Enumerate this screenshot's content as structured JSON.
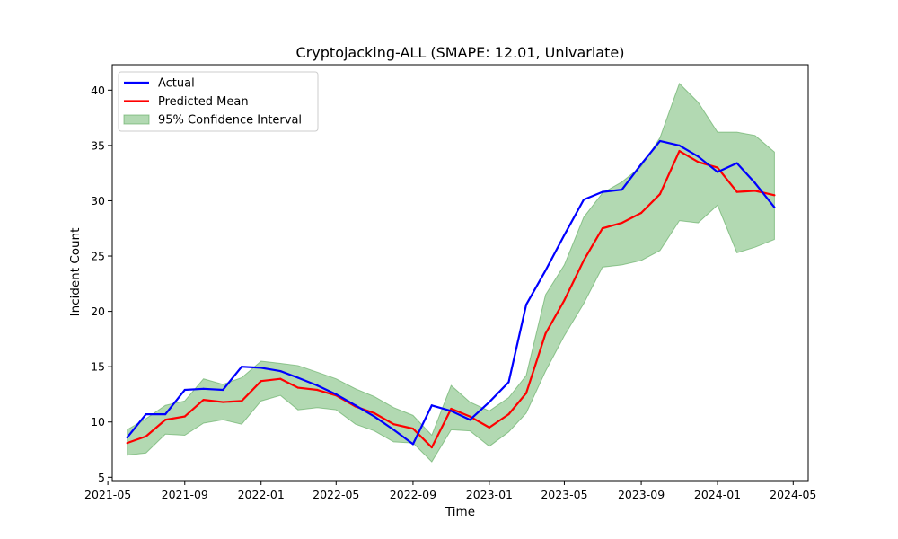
{
  "chart_data": {
    "type": "line",
    "title": "Cryptojacking-ALL (SMAPE: 12.01, Univariate)",
    "xlabel": "Time",
    "ylabel": "Incident Count",
    "xlim": [
      "2021-05-08",
      "2024-05-25"
    ],
    "ylim": [
      4.7,
      42.3
    ],
    "x_ticks": [
      "2021-05",
      "2021-09",
      "2022-01",
      "2022-05",
      "2022-09",
      "2023-01",
      "2023-05",
      "2023-09",
      "2024-01",
      "2024-05"
    ],
    "y_ticks": [
      5,
      10,
      15,
      20,
      25,
      30,
      35,
      40
    ],
    "legend_position": "upper-left",
    "x": [
      "2021-06-01",
      "2021-07-01",
      "2021-08-01",
      "2021-09-01",
      "2021-10-01",
      "2021-11-01",
      "2021-12-01",
      "2022-01-01",
      "2022-02-01",
      "2022-03-01",
      "2022-04-01",
      "2022-05-01",
      "2022-06-01",
      "2022-07-01",
      "2022-08-01",
      "2022-09-01",
      "2022-10-01",
      "2022-11-01",
      "2022-12-01",
      "2023-01-01",
      "2023-02-01",
      "2023-03-01",
      "2023-04-01",
      "2023-05-01",
      "2023-06-01",
      "2023-07-01",
      "2023-08-01",
      "2023-09-01",
      "2023-10-01",
      "2023-11-01",
      "2023-12-01",
      "2024-01-01",
      "2024-02-01",
      "2024-03-01",
      "2024-04-01"
    ],
    "series": [
      {
        "name": "Actual",
        "color": "#0000ff",
        "values": [
          8.6,
          10.7,
          10.7,
          12.9,
          13.0,
          12.9,
          15.0,
          14.9,
          14.6,
          14.0,
          13.3,
          12.5,
          11.5,
          10.5,
          9.3,
          8.0,
          11.5,
          11.0,
          10.2,
          11.8,
          13.6,
          20.6,
          23.7,
          26.9,
          30.1,
          30.8,
          31.0,
          33.3,
          35.4,
          35.0,
          34.0,
          32.6,
          33.4,
          31.6,
          29.4
        ]
      },
      {
        "name": "Predicted Mean",
        "color": "#ff0000",
        "values": [
          8.1,
          8.7,
          10.2,
          10.5,
          12.0,
          11.8,
          11.9,
          13.7,
          13.9,
          13.1,
          12.9,
          12.4,
          11.4,
          10.8,
          9.8,
          9.4,
          7.7,
          11.2,
          10.5,
          9.5,
          10.7,
          12.6,
          18.0,
          21.0,
          24.6,
          27.5,
          28.0,
          28.9,
          30.6,
          34.5,
          33.5,
          33.0,
          30.8,
          30.9,
          30.5
        ]
      }
    ],
    "band": {
      "name": "95% Confidence Interval",
      "color": "#7fbf7f",
      "lower": [
        7.0,
        7.2,
        8.9,
        8.8,
        9.9,
        10.2,
        9.8,
        11.9,
        12.4,
        11.1,
        11.3,
        11.1,
        9.8,
        9.2,
        8.2,
        8.1,
        6.4,
        9.3,
        9.2,
        7.8,
        9.1,
        10.8,
        14.6,
        17.8,
        20.7,
        24.0,
        24.2,
        24.6,
        25.5,
        28.2,
        28.0,
        29.6,
        25.3,
        25.8,
        26.5
      ],
      "upper": [
        9.3,
        10.3,
        11.5,
        11.9,
        13.9,
        13.4,
        14.0,
        15.5,
        15.3,
        15.1,
        14.5,
        13.9,
        13.0,
        12.3,
        11.3,
        10.6,
        8.8,
        13.3,
        11.8,
        11.0,
        12.2,
        14.2,
        21.5,
        24.2,
        28.5,
        30.7,
        31.7,
        33.1,
        35.7,
        40.6,
        38.9,
        36.2,
        36.2,
        35.9,
        34.4
      ]
    }
  }
}
